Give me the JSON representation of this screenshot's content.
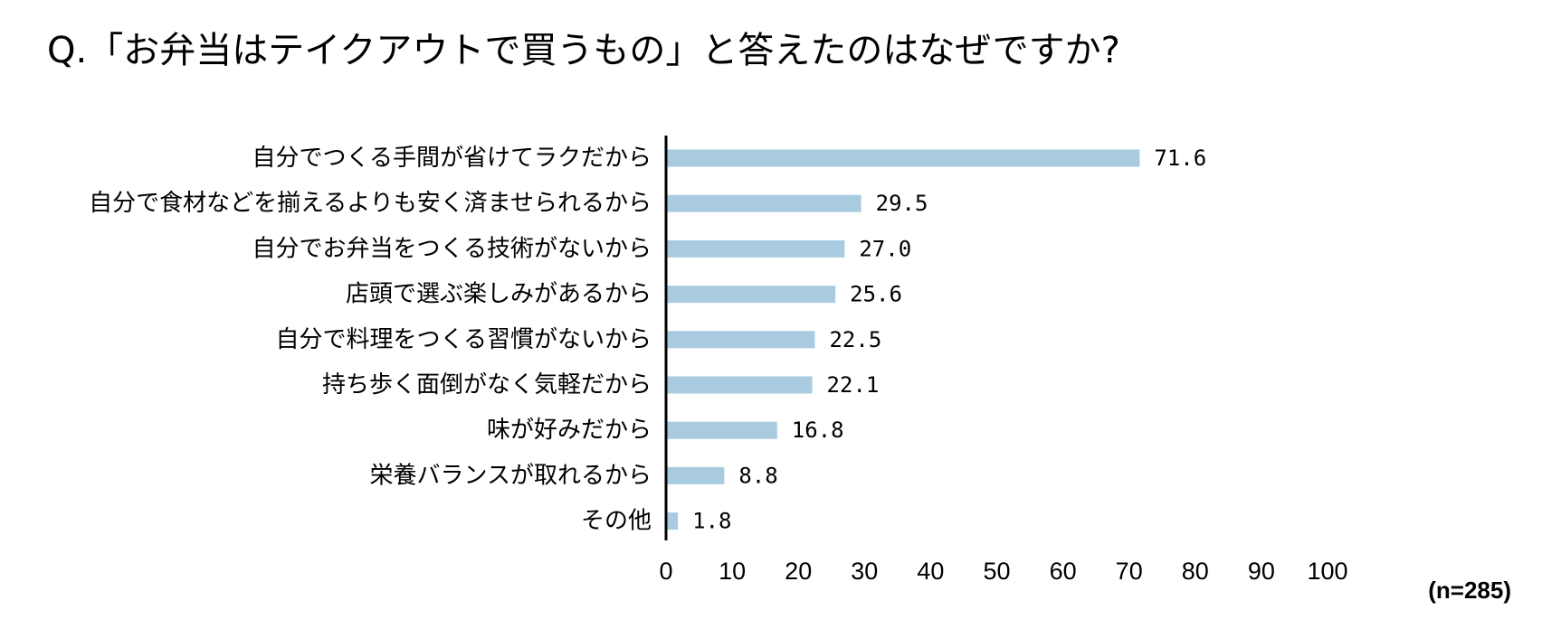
{
  "chart_data": {
    "type": "bar",
    "orientation": "horizontal",
    "title": "Q.「お弁当はテイクアウトで買うもの」と答えたのはなぜですか?",
    "categories": [
      "自分でつくる手間が省けてラクだから",
      "自分で食材などを揃えるよりも安く済ませられるから",
      "自分でお弁当をつくる技術がないから",
      "店頭で選ぶ楽しみがあるから",
      "自分で料理をつくる習慣がないから",
      "持ち歩く面倒がなく気軽だから",
      "味が好みだから",
      "栄養バランスが取れるから",
      "その他"
    ],
    "values": [
      71.6,
      29.5,
      27.0,
      25.6,
      22.5,
      22.1,
      16.8,
      8.8,
      1.8
    ],
    "value_labels": [
      "71.6",
      "29.5",
      "27.0",
      "25.6",
      "22.5",
      "22.1",
      "16.8",
      "8.8",
      "1.8"
    ],
    "xlim": [
      0,
      100
    ],
    "xticks": [
      0,
      10,
      20,
      30,
      40,
      50,
      60,
      70,
      80,
      90,
      100
    ],
    "xlabel": "",
    "ylabel": "",
    "grid": false,
    "legend": "none",
    "bar_color": "#a9cbe0",
    "axis_color": "#000000",
    "sample_note": "(n=285)"
  }
}
